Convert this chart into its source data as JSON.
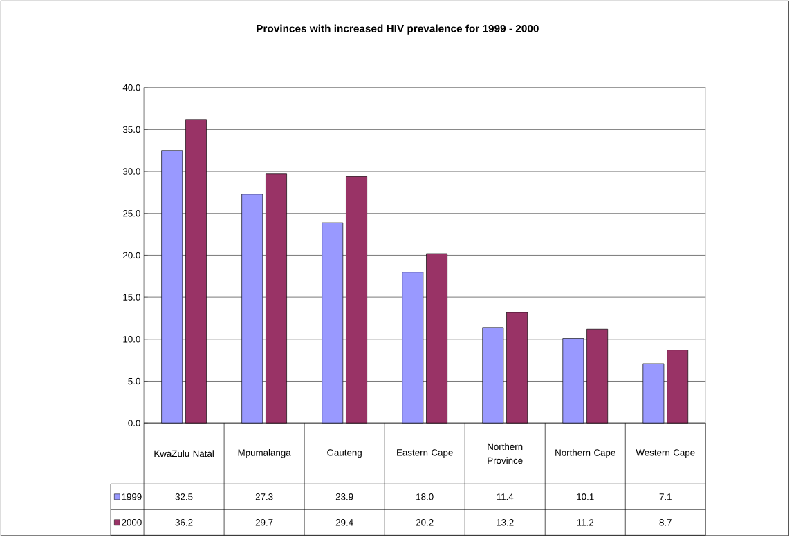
{
  "chart_data": {
    "type": "bar",
    "title": "Provinces with increased HIV prevalence for 1999 - 2000",
    "categories": [
      "KwaZulu Natal",
      "Mpumalanga",
      "Gauteng",
      "Eastern Cape",
      "Northern Province",
      "Northern Cape",
      "Western Cape"
    ],
    "series": [
      {
        "name": "1999",
        "color": "#9999ff",
        "values": [
          32.5,
          27.3,
          23.9,
          18.0,
          11.4,
          10.1,
          7.1
        ],
        "value_labels": [
          "32.5",
          "27.3",
          "23.9",
          "18.0",
          "11.4",
          "10.1",
          "7.1"
        ]
      },
      {
        "name": "2000",
        "color": "#993366",
        "values": [
          36.2,
          29.7,
          29.4,
          20.2,
          13.2,
          11.2,
          8.7
        ],
        "value_labels": [
          "36.2",
          "29.7",
          "29.4",
          "20.2",
          "13.2",
          "11.2",
          "8.7"
        ]
      }
    ],
    "ylim": [
      0,
      40
    ],
    "yticks": [
      {
        "value": 0,
        "label": "0.0"
      },
      {
        "value": 5,
        "label": "5.0"
      },
      {
        "value": 10,
        "label": "10.0"
      },
      {
        "value": 15,
        "label": "15.0"
      },
      {
        "value": 20,
        "label": "20.0"
      },
      {
        "value": 25,
        "label": "25.0"
      },
      {
        "value": 30,
        "label": "30.0"
      },
      {
        "value": 35,
        "label": "35.0"
      },
      {
        "value": 40,
        "label": "40.0"
      }
    ],
    "grid": "y",
    "legend": "bottom"
  }
}
